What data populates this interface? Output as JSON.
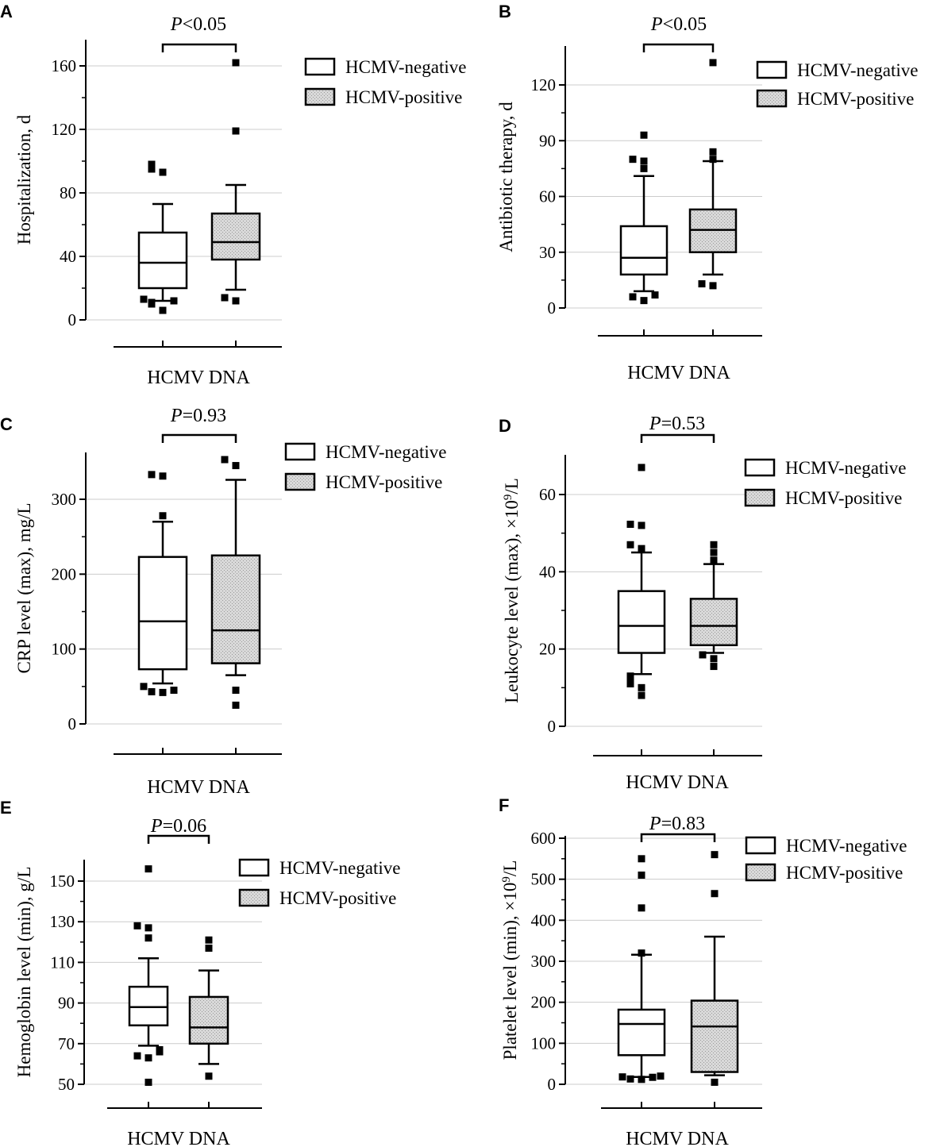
{
  "legend": {
    "negative_label": "HCMV-negative",
    "positive_label": "HCMV-positive"
  },
  "colors": {
    "axis": "#000000",
    "grid": "#cccccc",
    "hatch_fill": "#d9d9d9",
    "negative_fill": "#ffffff"
  },
  "chart_data": [
    {
      "type": "box",
      "panel_label": "A",
      "ylabel": "Hospitalization, d",
      "xlabel": "HCMV DNA",
      "ylim": [
        0,
        170
      ],
      "yticks": [
        0,
        40,
        80,
        120,
        160
      ],
      "grid": true,
      "legend_position": "top-right",
      "p_italic": "P",
      "p_rest": "<0.05",
      "series": [
        {
          "name": "HCMV-negative",
          "q1": 20,
          "median": 36,
          "q3": 55,
          "whisker_low": 12,
          "whisker_high": 73,
          "outliers": [
            6,
            10,
            11,
            12,
            13,
            93,
            95,
            98
          ]
        },
        {
          "name": "HCMV-positive",
          "q1": 38,
          "median": 49,
          "q3": 67,
          "whisker_low": 19,
          "whisker_high": 85,
          "outliers": [
            12,
            14,
            119,
            162
          ]
        }
      ]
    },
    {
      "type": "box",
      "panel_label": "B",
      "ylabel": "Antibiotic therapy, d",
      "xlabel": "HCMV DNA",
      "ylim": [
        0,
        140
      ],
      "yticks": [
        0,
        30,
        60,
        90,
        120
      ],
      "grid": true,
      "legend_position": "top-right",
      "p_italic": "P",
      "p_rest": "<0.05",
      "series": [
        {
          "name": "HCMV-negative",
          "q1": 18,
          "median": 27,
          "q3": 44,
          "whisker_low": 9,
          "whisker_high": 71,
          "outliers": [
            4,
            6,
            7,
            75,
            79,
            80,
            93
          ]
        },
        {
          "name": "HCMV-positive",
          "q1": 30,
          "median": 42,
          "q3": 53,
          "whisker_low": 18,
          "whisker_high": 79,
          "outliers": [
            12,
            13,
            80,
            84,
            132
          ]
        }
      ]
    },
    {
      "type": "box",
      "panel_label": "C",
      "ylabel": "CRP level (max), mg/L",
      "xlabel": "HCMV DNA",
      "ylim": [
        0,
        360
      ],
      "yticks": [
        0,
        100,
        200,
        300
      ],
      "grid": true,
      "legend_position": "top-right",
      "p_italic": "P",
      "p_rest": "=0.93",
      "series": [
        {
          "name": "HCMV-negative",
          "q1": 73,
          "median": 137,
          "q3": 223,
          "whisker_low": 54,
          "whisker_high": 270,
          "outliers": [
            42,
            43,
            45,
            50,
            278,
            331,
            333
          ]
        },
        {
          "name": "HCMV-positive",
          "q1": 81,
          "median": 125,
          "q3": 225,
          "whisker_low": 65,
          "whisker_high": 326,
          "outliers": [
            25,
            45,
            345,
            353
          ]
        }
      ]
    },
    {
      "type": "box",
      "panel_label": "D",
      "ylabel": "Leukocyte level (max), ×10",
      "ylabel_sup": "9",
      "ylabel_after": "/L",
      "xlabel": "HCMV DNA",
      "ylim": [
        0,
        70
      ],
      "yticks": [
        0,
        20,
        40,
        60
      ],
      "grid": true,
      "legend_position": "top-right",
      "p_italic": "P",
      "p_rest": "=0.53",
      "series": [
        {
          "name": "HCMV-negative",
          "q1": 19,
          "median": 26,
          "q3": 35,
          "whisker_low": 13.5,
          "whisker_high": 45,
          "outliers": [
            8,
            10,
            11,
            12,
            13,
            46,
            47,
            52,
            52.3,
            67
          ]
        },
        {
          "name": "HCMV-positive",
          "q1": 21,
          "median": 26,
          "q3": 33,
          "whisker_low": 19,
          "whisker_high": 42,
          "outliers": [
            15.5,
            17.5,
            18.5,
            43,
            45,
            47
          ]
        }
      ]
    },
    {
      "type": "box",
      "panel_label": "E",
      "ylabel": "Hemoglobin level (min), g/L",
      "xlabel": "HCMV DNA",
      "ylim": [
        48,
        160
      ],
      "yticks": [
        50,
        70,
        90,
        110,
        130,
        150
      ],
      "grid": true,
      "legend_position": "top-right",
      "p_italic": "P",
      "p_rest": "=0.06",
      "series": [
        {
          "name": "HCMV-negative",
          "q1": 79,
          "median": 88,
          "q3": 98,
          "whisker_low": 69,
          "whisker_high": 112,
          "outliers": [
            51,
            63,
            64,
            66,
            67,
            122,
            127,
            128,
            156
          ]
        },
        {
          "name": "HCMV-positive",
          "q1": 70,
          "median": 78,
          "q3": 93,
          "whisker_low": 60,
          "whisker_high": 106,
          "outliers": [
            54,
            117,
            121
          ]
        }
      ]
    },
    {
      "type": "box",
      "panel_label": "F",
      "ylabel": "Platelet level (min), ×10",
      "ylabel_sup": "9",
      "ylabel_after": "/L",
      "xlabel": "HCMV DNA",
      "ylim": [
        0,
        600
      ],
      "yticks": [
        0,
        100,
        200,
        300,
        400,
        500,
        600
      ],
      "grid": true,
      "legend_position": "top-right",
      "p_italic": "P",
      "p_rest": "=0.83",
      "series": [
        {
          "name": "HCMV-negative",
          "q1": 71,
          "median": 147,
          "q3": 182,
          "whisker_low": 18,
          "whisker_high": 316,
          "outliers": [
            12,
            13,
            17,
            18,
            20,
            320,
            430,
            510,
            550
          ]
        },
        {
          "name": "HCMV-positive",
          "q1": 30,
          "median": 141,
          "q3": 204,
          "whisker_low": 22,
          "whisker_high": 360,
          "outliers": [
            5,
            465,
            560
          ]
        }
      ]
    }
  ]
}
